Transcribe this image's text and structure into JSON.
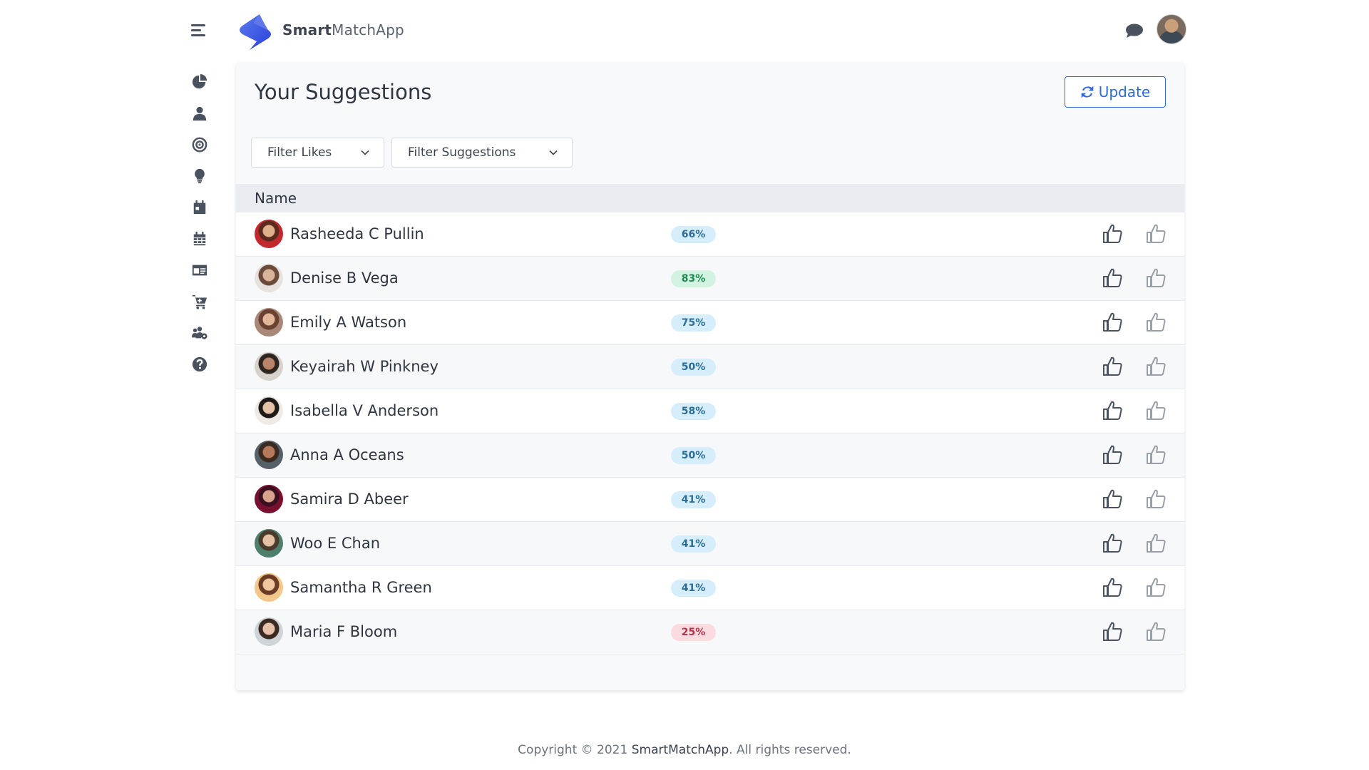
{
  "header": {
    "brand_bold": "Smart",
    "brand_rest": "MatchApp",
    "icons": [
      "hamburger-icon",
      "logo",
      "chat-icon",
      "avatar"
    ]
  },
  "sidebar": {
    "items": [
      {
        "icon": "pie-chart-icon"
      },
      {
        "icon": "user-icon"
      },
      {
        "icon": "target-icon"
      },
      {
        "icon": "lightbulb-icon"
      },
      {
        "icon": "calendar-day-icon"
      },
      {
        "icon": "calendar-icon"
      },
      {
        "icon": "id-card-icon"
      },
      {
        "icon": "cart-icon"
      },
      {
        "icon": "users-cog-icon"
      },
      {
        "icon": "help-icon"
      }
    ]
  },
  "main": {
    "title": "Your Suggestions",
    "update_label": "Update",
    "filters": {
      "likes": "Filter Likes",
      "suggestions": "Filter Suggestions"
    },
    "column_name": "Name",
    "rows": [
      {
        "name": "Rasheeda C Pullin",
        "score": "66%",
        "tone": "blue"
      },
      {
        "name": "Denise B Vega",
        "score": "83%",
        "tone": "green"
      },
      {
        "name": "Emily A Watson",
        "score": "75%",
        "tone": "blue"
      },
      {
        "name": "Keyairah W Pinkney",
        "score": "50%",
        "tone": "blue"
      },
      {
        "name": "Isabella V Anderson",
        "score": "58%",
        "tone": "blue"
      },
      {
        "name": "Anna A Oceans",
        "score": "50%",
        "tone": "blue"
      },
      {
        "name": "Samira D Abeer",
        "score": "41%",
        "tone": "blue"
      },
      {
        "name": "Woo E Chan",
        "score": "41%",
        "tone": "blue"
      },
      {
        "name": "Samantha R Green",
        "score": "41%",
        "tone": "blue"
      },
      {
        "name": "Maria F Bloom",
        "score": "25%",
        "tone": "red"
      }
    ]
  },
  "footer": {
    "prefix": "Copyright © 2021 ",
    "brand": "SmartMatchApp",
    "suffix": ". All rights reserved."
  },
  "colors": {
    "accent": "#2d6ae0",
    "badge_blue_bg": "#d6eefb",
    "badge_green_bg": "#d2f3e2",
    "badge_red_bg": "#fbdbe0"
  }
}
